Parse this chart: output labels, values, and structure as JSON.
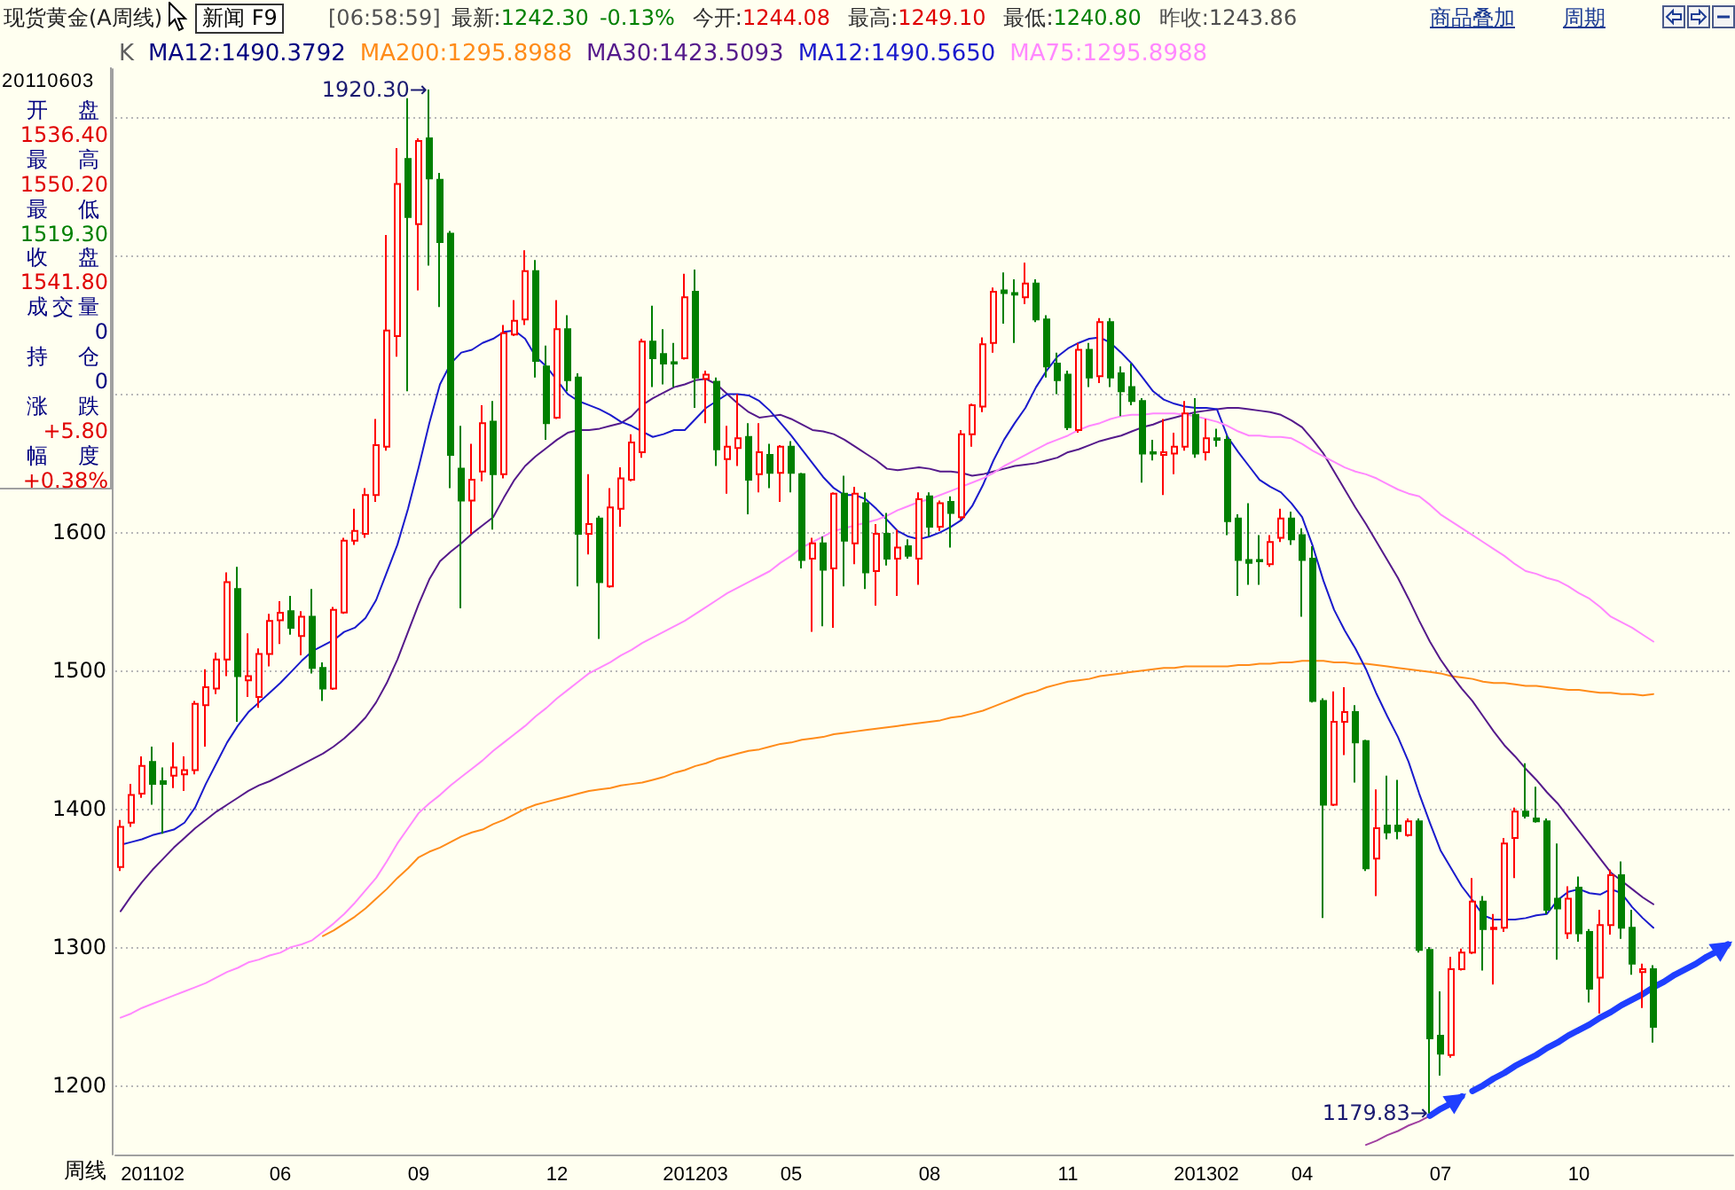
{
  "chart_data": {
    "type": "candlestick",
    "title": "现货黄金(A周线)",
    "xlabel": "周线",
    "categories": [
      null,
      null,
      null,
      "201102",
      null,
      null,
      null,
      null,
      null,
      null,
      null,
      null,
      null,
      null,
      null,
      "06",
      null,
      null,
      null,
      null,
      null,
      null,
      null,
      null,
      null,
      null,
      null,
      null,
      "09",
      null,
      null,
      null,
      null,
      null,
      null,
      null,
      null,
      null,
      null,
      null,
      null,
      "12",
      null,
      null,
      null,
      null,
      null,
      null,
      null,
      null,
      null,
      null,
      null,
      null,
      "201203",
      null,
      null,
      null,
      null,
      null,
      null,
      null,
      null,
      "05",
      null,
      null,
      null,
      null,
      null,
      null,
      null,
      null,
      null,
      null,
      null,
      null,
      "08",
      null,
      null,
      null,
      null,
      null,
      null,
      null,
      null,
      null,
      null,
      null,
      null,
      "11",
      null,
      null,
      null,
      null,
      null,
      null,
      null,
      null,
      null,
      null,
      null,
      null,
      "201302",
      null,
      null,
      null,
      null,
      null,
      null,
      null,
      null,
      "04",
      null,
      null,
      null,
      null,
      null,
      null,
      null,
      null,
      null,
      null,
      null,
      null,
      "07",
      null,
      null,
      null,
      null,
      null,
      null,
      null,
      null,
      null,
      null,
      null,
      null,
      "10",
      null,
      null,
      null,
      null,
      null,
      null,
      null,
      null,
      null,
      null,
      null,
      null,
      null,
      null
    ],
    "series": [
      {
        "ohlc": [
          [
            1358,
            1392,
            1355,
            1387
          ],
          [
            1390,
            1418,
            1387,
            1410
          ],
          [
            1411,
            1438,
            1408,
            1431
          ],
          [
            1434,
            1445,
            1403,
            1418
          ],
          [
            1420,
            1430,
            1382,
            1418
          ],
          [
            1424,
            1448,
            1415,
            1430
          ],
          [
            1425,
            1438,
            1413,
            1428
          ],
          [
            1428,
            1478,
            1425,
            1476
          ],
          [
            1475,
            1501,
            1445,
            1488
          ],
          [
            1487,
            1513,
            1483,
            1508
          ],
          [
            1508,
            1571,
            1496,
            1564
          ],
          [
            1559,
            1575,
            1463,
            1496
          ],
          [
            1493,
            1527,
            1481,
            1496
          ],
          [
            1481,
            1516,
            1473,
            1512
          ],
          [
            1512,
            1541,
            1503,
            1536
          ],
          [
            1536.4,
            1550.2,
            1519.3,
            1541.8
          ],
          [
            1543,
            1554,
            1526,
            1531
          ],
          [
            1525,
            1543,
            1511,
            1539
          ],
          [
            1539,
            1559,
            1498,
            1502
          ],
          [
            1502,
            1506,
            1478,
            1487
          ],
          [
            1487,
            1546,
            1486,
            1544
          ],
          [
            1542,
            1596,
            1541,
            1594
          ],
          [
            1594,
            1617,
            1591,
            1601
          ],
          [
            1599,
            1632,
            1596,
            1627
          ],
          [
            1627,
            1682,
            1622,
            1663
          ],
          [
            1662,
            1815,
            1659,
            1746
          ],
          [
            1742,
            1878,
            1727,
            1852
          ],
          [
            1870,
            1914,
            1702,
            1828
          ],
          [
            1823,
            1885,
            1775,
            1883
          ],
          [
            1885,
            1920.3,
            1793,
            1856
          ],
          [
            1855,
            1860,
            1763,
            1810
          ],
          [
            1816,
            1818,
            1632,
            1656
          ],
          [
            1646,
            1677,
            1545,
            1623
          ],
          [
            1623,
            1664,
            1599,
            1638
          ],
          [
            1644,
            1692,
            1637,
            1679
          ],
          [
            1680,
            1695,
            1602,
            1642
          ],
          [
            1642,
            1750,
            1639,
            1744
          ],
          [
            1743,
            1768,
            1742,
            1753
          ],
          [
            1754,
            1804,
            1750,
            1789
          ],
          [
            1789,
            1797,
            1712,
            1724
          ],
          [
            1720,
            1735,
            1667,
            1679
          ],
          [
            1683,
            1768,
            1682,
            1747
          ],
          [
            1747,
            1757,
            1702,
            1710
          ],
          [
            1712,
            1715,
            1561,
            1599
          ],
          [
            1599,
            1642,
            1584,
            1606
          ],
          [
            1610,
            1612,
            1523,
            1564
          ],
          [
            1561,
            1632,
            1560,
            1618
          ],
          [
            1617,
            1647,
            1604,
            1639
          ],
          [
            1638,
            1671,
            1637,
            1665
          ],
          [
            1658,
            1740,
            1654,
            1738
          ],
          [
            1738,
            1764,
            1705,
            1726
          ],
          [
            1729,
            1747,
            1707,
            1722
          ],
          [
            1723,
            1737,
            1705,
            1722
          ],
          [
            1726,
            1787,
            1725,
            1770
          ],
          [
            1774,
            1790,
            1690,
            1712
          ],
          [
            1711,
            1717,
            1679,
            1714
          ],
          [
            1709,
            1712,
            1648,
            1660
          ],
          [
            1653,
            1677,
            1628,
            1662
          ],
          [
            1661,
            1700,
            1648,
            1668
          ],
          [
            1669,
            1679,
            1613,
            1638
          ],
          [
            1642,
            1679,
            1629,
            1658
          ],
          [
            1656,
            1664,
            1632,
            1643
          ],
          [
            1643,
            1663,
            1622,
            1662
          ],
          [
            1662,
            1666,
            1629,
            1643
          ],
          [
            1642,
            1643,
            1574,
            1580
          ],
          [
            1581,
            1596,
            1528,
            1592
          ],
          [
            1592,
            1597,
            1532,
            1573
          ],
          [
            1574,
            1629,
            1531,
            1628
          ],
          [
            1628,
            1641,
            1561,
            1594
          ],
          [
            1592,
            1633,
            1577,
            1628
          ],
          [
            1621,
            1629,
            1559,
            1571
          ],
          [
            1572,
            1606,
            1547,
            1599
          ],
          [
            1599,
            1614,
            1576,
            1581
          ],
          [
            1581,
            1602,
            1554,
            1589
          ],
          [
            1590,
            1595,
            1581,
            1583
          ],
          [
            1581,
            1629,
            1562,
            1624
          ],
          [
            1626,
            1629,
            1597,
            1604
          ],
          [
            1604,
            1623,
            1601,
            1621
          ],
          [
            1622,
            1626,
            1589,
            1614
          ],
          [
            1611,
            1674,
            1609,
            1671
          ],
          [
            1671,
            1693,
            1662,
            1692
          ],
          [
            1691,
            1741,
            1687,
            1736
          ],
          [
            1737,
            1777,
            1730,
            1774
          ],
          [
            1775,
            1788,
            1751,
            1773
          ],
          [
            1773,
            1783,
            1737,
            1772
          ],
          [
            1770,
            1795,
            1765,
            1780
          ],
          [
            1780,
            1783,
            1752,
            1754
          ],
          [
            1754,
            1757,
            1712,
            1720
          ],
          [
            1722,
            1730,
            1700,
            1710
          ],
          [
            1714,
            1717,
            1674,
            1676
          ],
          [
            1674,
            1737,
            1672,
            1732
          ],
          [
            1732,
            1737,
            1705,
            1712
          ],
          [
            1713,
            1755,
            1708,
            1752
          ],
          [
            1752,
            1755,
            1705,
            1712
          ],
          [
            1715,
            1720,
            1684,
            1702
          ],
          [
            1705,
            1722,
            1692,
            1695
          ],
          [
            1695,
            1697,
            1636,
            1657
          ],
          [
            1658,
            1667,
            1652,
            1657
          ],
          [
            1656,
            1682,
            1627,
            1658
          ],
          [
            1657,
            1672,
            1642,
            1662
          ],
          [
            1662,
            1695,
            1659,
            1686
          ],
          [
            1685,
            1697,
            1654,
            1657
          ],
          [
            1658,
            1682,
            1652,
            1668
          ],
          [
            1668,
            1675,
            1662,
            1667
          ],
          [
            1667,
            1670,
            1598,
            1608
          ],
          [
            1610,
            1613,
            1554,
            1580
          ],
          [
            1580,
            1621,
            1562,
            1578
          ],
          [
            1580,
            1598,
            1562,
            1579
          ],
          [
            1577,
            1598,
            1575,
            1593
          ],
          [
            1596,
            1617,
            1593,
            1610
          ],
          [
            1610,
            1615,
            1591,
            1595
          ],
          [
            1598,
            1603,
            1539,
            1580
          ],
          [
            1581,
            1590,
            1477,
            1478
          ],
          [
            1478,
            1480,
            1321,
            1403
          ],
          [
            1403,
            1485,
            1402,
            1463
          ],
          [
            1463,
            1488,
            1439,
            1470
          ],
          [
            1470,
            1475,
            1419,
            1448
          ],
          [
            1449,
            1450,
            1355,
            1357
          ],
          [
            1364,
            1414,
            1337,
            1386
          ],
          [
            1388,
            1424,
            1378,
            1383
          ],
          [
            1388,
            1421,
            1378,
            1384
          ],
          [
            1381,
            1393,
            1380,
            1391
          ],
          [
            1391,
            1393,
            1296,
            1298
          ],
          [
            1298,
            1300,
            1179.83,
            1234
          ],
          [
            1236,
            1268,
            1207,
            1223
          ],
          [
            1222,
            1293,
            1220,
            1284
          ],
          [
            1284,
            1299,
            1283,
            1296
          ],
          [
            1296,
            1350,
            1295,
            1333
          ],
          [
            1333,
            1337,
            1283,
            1313
          ],
          [
            1313,
            1324,
            1273,
            1314
          ],
          [
            1314,
            1379,
            1311,
            1375
          ],
          [
            1379,
            1401,
            1350,
            1398
          ],
          [
            1398,
            1433,
            1393,
            1395
          ],
          [
            1393,
            1416,
            1390,
            1391
          ],
          [
            1391,
            1393,
            1324,
            1327
          ],
          [
            1335,
            1375,
            1291,
            1328
          ],
          [
            1310,
            1344,
            1306,
            1335
          ],
          [
            1343,
            1351,
            1304,
            1310
          ],
          [
            1311,
            1313,
            1260,
            1270
          ],
          [
            1278,
            1327,
            1252,
            1316
          ],
          [
            1316,
            1356,
            1309,
            1352
          ],
          [
            1352,
            1362,
            1306,
            1314
          ],
          [
            1314,
            1327,
            1280,
            1288
          ],
          [
            1282,
            1288,
            1256,
            1284
          ],
          [
            1284,
            1287,
            1231,
            1242.3
          ],
          null,
          null,
          null,
          null,
          null,
          null,
          null
        ]
      },
      {
        "name": "MA200:1295.8988",
        "type": "line",
        "color": "#ff8c1a",
        "values": [
          null,
          null,
          null,
          null,
          null,
          null,
          null,
          null,
          null,
          null,
          null,
          null,
          null,
          null,
          null,
          null,
          null,
          null,
          null,
          1308,
          1312,
          1317,
          1322,
          1328,
          1335,
          1342,
          1350,
          1357,
          1365,
          1369,
          1372,
          1376,
          1380,
          1383,
          1385,
          1389,
          1392,
          1396,
          1400,
          1403,
          1405,
          1407,
          1409,
          1411,
          1413,
          1414,
          1415,
          1417,
          1418,
          1419,
          1421,
          1423,
          1426,
          1428,
          1431,
          1433,
          1436,
          1438,
          1440,
          1442,
          1443,
          1445,
          1447,
          1448,
          1450,
          1451,
          1452,
          1454,
          1455,
          1456,
          1457,
          1458,
          1459,
          1460,
          1461,
          1462,
          1463,
          1464,
          1466,
          1467,
          1469,
          1471,
          1474,
          1477,
          1480,
          1483,
          1485,
          1488,
          1490,
          1492,
          1493,
          1494,
          1496,
          1497,
          1498,
          1499,
          1500,
          1501,
          1502,
          1502,
          1503,
          1503,
          1503,
          1503,
          1503,
          1504,
          1504,
          1505,
          1505,
          1506,
          1506,
          1507,
          1507,
          1507,
          1506,
          1506,
          1505,
          1505,
          1504,
          1503,
          1502,
          1501,
          1500,
          1499,
          1498,
          1496,
          1495,
          1494,
          1492,
          1491,
          1491,
          1490,
          1489,
          1489,
          1488,
          1487,
          1486,
          1486,
          1485,
          1484,
          1484,
          1483,
          1483,
          1482,
          1483,
          null,
          null,
          null,
          null,
          null,
          null,
          null
        ]
      },
      {
        "name": "MA30:1423.5093",
        "type": "line",
        "color": "#551a8b",
        "values": [
          1326,
          1337,
          1347,
          1356,
          1364,
          1372,
          1379,
          1386,
          1392,
          1398,
          1403,
          1408,
          1413,
          1417,
          1420,
          1424,
          1428,
          1432,
          1436,
          1440,
          1445,
          1451,
          1458,
          1466,
          1477,
          1491,
          1508,
          1528,
          1548,
          1566,
          1579,
          1586,
          1592,
          1599,
          1605,
          1611,
          1625,
          1638,
          1648,
          1655,
          1661,
          1667,
          1672,
          1674,
          1674,
          1675,
          1677,
          1679,
          1684,
          1692,
          1697,
          1701,
          1705,
          1707,
          1710,
          1711,
          1707,
          1700,
          1693,
          1687,
          1683,
          1684,
          1685,
          1682,
          1678,
          1674,
          1673,
          1671,
          1667,
          1662,
          1657,
          1652,
          1646,
          1645,
          1646,
          1647,
          1646,
          1644,
          1644,
          1643,
          1641,
          1642,
          1644,
          1646,
          1648,
          1649,
          1650,
          1652,
          1654,
          1658,
          1660,
          1663,
          1666,
          1668,
          1670,
          1673,
          1676,
          1678,
          1681,
          1683,
          1685,
          1687,
          1688,
          1689,
          1690,
          1690,
          1689,
          1688,
          1687,
          1685,
          1681,
          1676,
          1667,
          1657,
          1644,
          1631,
          1618,
          1606,
          1593,
          1580,
          1567,
          1552,
          1536,
          1521,
          1508,
          1497,
          1487,
          1478,
          1467,
          1456,
          1446,
          1438,
          1429,
          1421,
          1412,
          1404,
          1394,
          1384,
          1374,
          1364,
          1354,
          1348,
          1342,
          1336,
          1331,
          null,
          null,
          null,
          null,
          null,
          null,
          null
        ]
      },
      {
        "name": "MA12:1490.5650",
        "type": "line",
        "color": "#1a1acc",
        "values": [
          1374,
          1376,
          1378,
          1381,
          1383,
          1385,
          1390,
          1401,
          1418,
          1433,
          1448,
          1460,
          1470,
          1477,
          1484,
          1491,
          1499,
          1507,
          1514,
          1518,
          1522,
          1528,
          1531,
          1538,
          1551,
          1571,
          1591,
          1617,
          1647,
          1679,
          1707,
          1722,
          1730,
          1732,
          1737,
          1740,
          1745,
          1746,
          1740,
          1727,
          1720,
          1710,
          1700,
          1695,
          1692,
          1689,
          1685,
          1680,
          1677,
          1673,
          1669,
          1671,
          1674,
          1674,
          1682,
          1690,
          1695,
          1700,
          1700,
          1699,
          1695,
          1688,
          1679,
          1670,
          1660,
          1650,
          1640,
          1632,
          1627,
          1627,
          1624,
          1617,
          1609,
          1601,
          1597,
          1595,
          1597,
          1600,
          1604,
          1609,
          1619,
          1634,
          1652,
          1667,
          1679,
          1690,
          1705,
          1717,
          1727,
          1733,
          1737,
          1740,
          1741,
          1737,
          1730,
          1722,
          1712,
          1702,
          1696,
          1693,
          1691,
          1690,
          1690,
          1689,
          1669,
          1658,
          1648,
          1638,
          1633,
          1629,
          1621,
          1611,
          1590,
          1565,
          1544,
          1529,
          1516,
          1501,
          1483,
          1467,
          1452,
          1434,
          1411,
          1390,
          1370,
          1357,
          1344,
          1334,
          1323,
          1320,
          1320,
          1320,
          1321,
          1323,
          1324,
          1334,
          1340,
          1342,
          1339,
          1338,
          1342,
          1339,
          1329,
          1321,
          1314,
          null,
          null,
          null,
          null,
          null,
          null,
          null
        ]
      },
      {
        "name": "MA75:1295.8988",
        "type": "line",
        "color": "#ff88ff",
        "values": [
          1249,
          1252,
          1256,
          1259,
          1262,
          1265,
          1268,
          1271,
          1274,
          1278,
          1282,
          1285,
          1289,
          1291,
          1294,
          1296,
          1300,
          1302,
          1305,
          1311,
          1317,
          1324,
          1332,
          1341,
          1350,
          1362,
          1375,
          1386,
          1397,
          1404,
          1410,
          1417,
          1423,
          1429,
          1435,
          1442,
          1448,
          1454,
          1460,
          1467,
          1473,
          1480,
          1486,
          1492,
          1498,
          1502,
          1506,
          1511,
          1515,
          1520,
          1524,
          1528,
          1532,
          1536,
          1541,
          1546,
          1551,
          1556,
          1560,
          1564,
          1568,
          1572,
          1578,
          1583,
          1589,
          1593,
          1597,
          1601,
          1603,
          1605,
          1607,
          1609,
          1612,
          1616,
          1619,
          1622,
          1624,
          1627,
          1630,
          1633,
          1636,
          1639,
          1643,
          1648,
          1652,
          1656,
          1660,
          1664,
          1667,
          1670,
          1674,
          1677,
          1679,
          1682,
          1684,
          1685,
          1685,
          1686,
          1686,
          1686,
          1685,
          1684,
          1682,
          1680,
          1677,
          1673,
          1670,
          1670,
          1669,
          1669,
          1668,
          1664,
          1659,
          1655,
          1651,
          1647,
          1644,
          1642,
          1639,
          1635,
          1631,
          1628,
          1626,
          1620,
          1613,
          1608,
          1603,
          1598,
          1593,
          1588,
          1583,
          1577,
          1572,
          1570,
          1567,
          1565,
          1561,
          1556,
          1552,
          1546,
          1539,
          1535,
          1531,
          1526,
          1521,
          null,
          null,
          null,
          null,
          null,
          null,
          null
        ]
      },
      {
        "type": "line",
        "color": "#a040a0",
        "values": [
          null,
          null,
          null,
          null,
          null,
          null,
          null,
          null,
          null,
          null,
          null,
          null,
          null,
          null,
          null,
          null,
          null,
          null,
          null,
          null,
          null,
          null,
          null,
          null,
          null,
          null,
          null,
          null,
          null,
          null,
          null,
          null,
          null,
          null,
          null,
          null,
          null,
          null,
          null,
          null,
          null,
          null,
          null,
          null,
          null,
          null,
          null,
          null,
          null,
          null,
          null,
          null,
          null,
          null,
          null,
          null,
          null,
          null,
          null,
          null,
          null,
          null,
          null,
          null,
          null,
          null,
          null,
          null,
          null,
          null,
          null,
          null,
          null,
          null,
          null,
          null,
          null,
          null,
          null,
          null,
          null,
          null,
          null,
          null,
          null,
          null,
          null,
          null,
          null,
          null,
          null,
          null,
          null,
          null,
          null,
          null,
          null,
          null,
          null,
          null,
          null,
          null,
          null,
          null,
          null,
          null,
          null,
          null,
          null,
          null,
          null,
          null,
          null,
          null,
          null,
          null,
          null,
          1157,
          1160,
          1164,
          1167,
          1171,
          1174,
          1178,
          null,
          null,
          null,
          null,
          null,
          null,
          null,
          null,
          null,
          null,
          null,
          null,
          null,
          null,
          null,
          null,
          null,
          null,
          null,
          null,
          null,
          null,
          null,
          null,
          null,
          null,
          null,
          null
        ]
      },
      {
        "type": "line",
        "color": "#1f3fff",
        "values": [
          null,
          null,
          null,
          null,
          null,
          null,
          null,
          null,
          null,
          null,
          null,
          null,
          null,
          null,
          null,
          null,
          null,
          null,
          null,
          null,
          null,
          null,
          null,
          null,
          null,
          null,
          null,
          null,
          null,
          null,
          null,
          null,
          null,
          null,
          null,
          null,
          null,
          null,
          null,
          null,
          null,
          null,
          null,
          null,
          null,
          null,
          null,
          null,
          null,
          null,
          null,
          null,
          null,
          null,
          null,
          null,
          null,
          null,
          null,
          null,
          null,
          null,
          null,
          null,
          null,
          null,
          null,
          null,
          null,
          null,
          null,
          null,
          null,
          null,
          null,
          null,
          null,
          null,
          null,
          null,
          null,
          null,
          null,
          null,
          null,
          null,
          null,
          null,
          null,
          null,
          null,
          null,
          null,
          null,
          null,
          null,
          null,
          null,
          null,
          null,
          null,
          null,
          null,
          null,
          null,
          null,
          null,
          null,
          null,
          null,
          null,
          null,
          null,
          null,
          null,
          null,
          null,
          null,
          null,
          null,
          null,
          null,
          null,
          1178,
          1183,
          1187,
          1192,
          null,
          null,
          null,
          null,
          null,
          null,
          null,
          null,
          null,
          null,
          null,
          null,
          null,
          null,
          null,
          null,
          null,
          null,
          null,
          null,
          null,
          null,
          null,
          null,
          null
        ]
      },
      {
        "type": "line",
        "color": "#1f3fff",
        "values": [
          null,
          null,
          null,
          null,
          null,
          null,
          null,
          null,
          null,
          null,
          null,
          null,
          null,
          null,
          null,
          null,
          null,
          null,
          null,
          null,
          null,
          null,
          null,
          null,
          null,
          null,
          null,
          null,
          null,
          null,
          null,
          null,
          null,
          null,
          null,
          null,
          null,
          null,
          null,
          null,
          null,
          null,
          null,
          null,
          null,
          null,
          null,
          null,
          null,
          null,
          null,
          null,
          null,
          null,
          null,
          null,
          null,
          null,
          null,
          null,
          null,
          null,
          null,
          null,
          null,
          null,
          null,
          null,
          null,
          null,
          null,
          null,
          null,
          null,
          null,
          null,
          null,
          null,
          null,
          null,
          null,
          null,
          null,
          null,
          null,
          null,
          null,
          null,
          null,
          null,
          null,
          null,
          null,
          null,
          null,
          null,
          null,
          null,
          null,
          null,
          null,
          null,
          null,
          null,
          null,
          null,
          null,
          null,
          null,
          null,
          null,
          null,
          null,
          null,
          null,
          null,
          null,
          null,
          null,
          null,
          null,
          null,
          null,
          null,
          null,
          null,
          null,
          1196,
          1200,
          1205,
          1209,
          1214,
          1218,
          1222,
          1227,
          1231,
          1236,
          1240,
          1244,
          1249,
          1253,
          1258,
          1262,
          1266,
          1271,
          1275,
          1280,
          1284,
          1288,
          1293,
          1297,
          1302
        ]
      }
    ],
    "ylim": [
      1150,
      1935
    ],
    "yticks": [
      1200,
      1300,
      1400,
      1500,
      1600,
      {
        "value": 1700,
        "label": null
      },
      {
        "value": 1800,
        "label": null
      },
      {
        "value": 1900,
        "label": null
      }
    ],
    "grid": "y",
    "legend": "top left",
    "annotations": [
      "[06:58:59]",
      "最新:",
      "1242.30",
      "-0.13%",
      "今开:",
      "1244.08",
      "最高:",
      "1249.10",
      "最低:",
      "1240.80",
      "昨收:",
      "1243.86",
      "新闻 F9",
      "商品叠加",
      "周期",
      "K",
      "MA12:1490.3792",
      "20110603",
      "开盘",
      "1536.40",
      "最高",
      "1550.20",
      "最低",
      "1519.30",
      "收盘",
      "1541.80",
      "成交量",
      "0",
      "持仓",
      "0",
      "涨跌",
      "+5.80",
      "幅度",
      "+0.38%",
      "1920.30→",
      "1179.83→"
    ]
  }
}
